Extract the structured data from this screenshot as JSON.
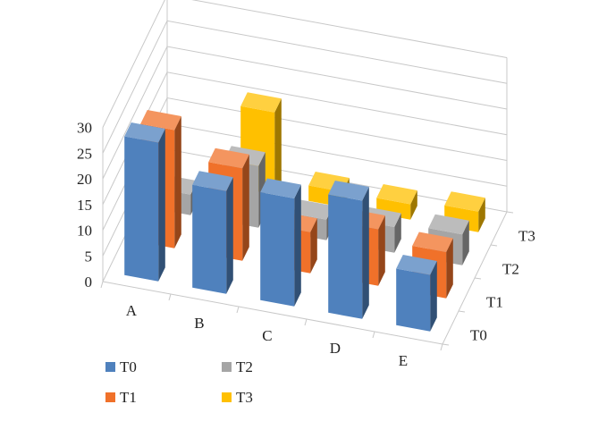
{
  "chart_data": {
    "type": "bar",
    "subtype": "3d-column",
    "categories": [
      "A",
      "B",
      "C",
      "D",
      "E"
    ],
    "series_axis": [
      "T0",
      "T1",
      "T2",
      "T3"
    ],
    "ylim": [
      0,
      30
    ],
    "yticks": [
      0,
      5,
      10,
      15,
      20,
      25,
      30
    ],
    "grid": true,
    "legend_position": "bottom-left",
    "series": [
      {
        "name": "T0",
        "color": "#4f81bd",
        "values": [
          27,
          20,
          21,
          23,
          11
        ]
      },
      {
        "name": "T1",
        "color": "#f0712a",
        "values": [
          23,
          18,
          8,
          11,
          9
        ]
      },
      {
        "name": "T2",
        "color": "#a5a5a5",
        "values": [
          4,
          12,
          4,
          5,
          6
        ]
      },
      {
        "name": "T3",
        "color": "#ffc000",
        "values": [
          0,
          16,
          3,
          3,
          4
        ]
      }
    ]
  }
}
